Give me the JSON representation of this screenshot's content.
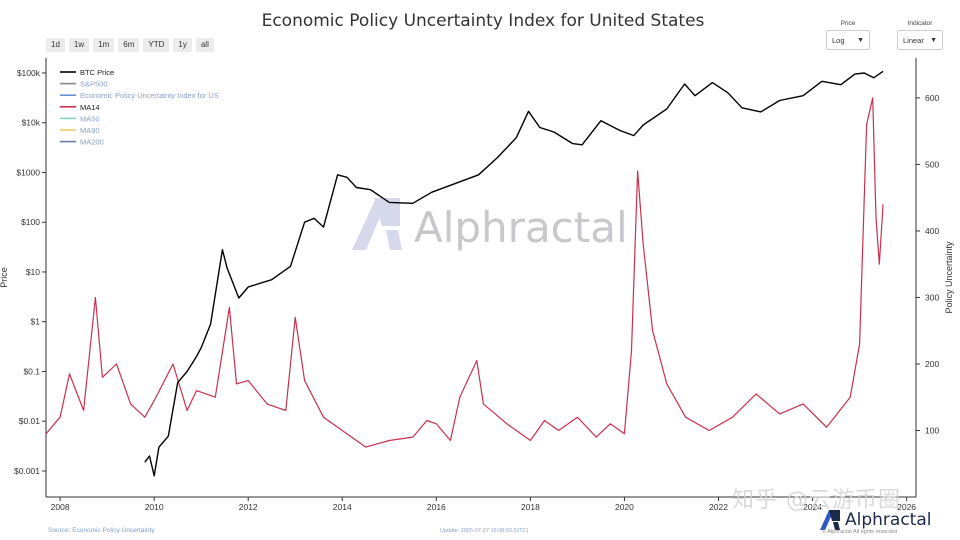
{
  "title": "Economic Policy Uncertainty Index for United States",
  "range_buttons": [
    "1d",
    "1w",
    "1m",
    "6m",
    "YTD",
    "1y",
    "all"
  ],
  "price_select": {
    "label": "Price",
    "value": "Log"
  },
  "indicator_select": {
    "label": "Indicator",
    "value": "Linear"
  },
  "watermark": {
    "brand": "Alphractal",
    "zhihu": "知乎 @云游币圈"
  },
  "footer": {
    "source": "Source: Economic Policy Uncertainty",
    "update": "Update: 2025-07-07 15:08:03 (UTC)",
    "brand": "Alphractal",
    "rights": "© Alphractal All rights reserved"
  },
  "colors": {
    "btc": "#000000",
    "ma14": "#c8314e",
    "sp500": "#888888",
    "epu": "#6c8fd8",
    "ma50": "#7fd3c4",
    "ma90": "#f2c96b",
    "ma200": "#6a7fa8"
  },
  "chart_data": {
    "type": "line",
    "title": "Economic Policy Uncertainty Index for United States",
    "x_axis": {
      "ticks": [
        "2008",
        "2010",
        "2012",
        "2014",
        "2016",
        "2018",
        "2020",
        "2022",
        "2024",
        "2026"
      ],
      "range": [
        2007.7,
        2026.2
      ]
    },
    "y_left": {
      "label": "Price",
      "scale": "log",
      "ticks": [
        "$0.001",
        "$0.01",
        "$0.1",
        "$1",
        "$10",
        "$100",
        "$1000",
        "$10k",
        "$100k"
      ],
      "range": [
        0.0003,
        200000
      ]
    },
    "y_right": {
      "label": "Policy Uncertainty",
      "scale": "linear",
      "ticks": [
        "100",
        "200",
        "300",
        "400",
        "500",
        "600"
      ],
      "range": [
        0,
        660
      ]
    },
    "legend_position": "top-left",
    "grid": false,
    "legend": [
      "BTC Price",
      "S&P500",
      "Economic Policy Uncertainty Index for US",
      "MA14",
      "MA50",
      "MA90",
      "MA200"
    ],
    "series": [
      {
        "name": "BTC Price",
        "axis": "left",
        "points": [
          [
            2009.8,
            0.0015
          ],
          [
            2009.9,
            0.002
          ],
          [
            2010.0,
            0.0008
          ],
          [
            2010.1,
            0.003
          ],
          [
            2010.3,
            0.005
          ],
          [
            2010.5,
            0.06
          ],
          [
            2010.7,
            0.1
          ],
          [
            2010.9,
            0.2
          ],
          [
            2011.0,
            0.3
          ],
          [
            2011.2,
            0.9
          ],
          [
            2011.45,
            28
          ],
          [
            2011.55,
            12
          ],
          [
            2011.8,
            3
          ],
          [
            2012.0,
            5
          ],
          [
            2012.5,
            7
          ],
          [
            2012.9,
            13
          ],
          [
            2013.2,
            100
          ],
          [
            2013.4,
            120
          ],
          [
            2013.6,
            80
          ],
          [
            2013.9,
            900
          ],
          [
            2014.1,
            800
          ],
          [
            2014.3,
            500
          ],
          [
            2014.6,
            450
          ],
          [
            2015.0,
            250
          ],
          [
            2015.5,
            240
          ],
          [
            2015.9,
            400
          ],
          [
            2016.5,
            650
          ],
          [
            2016.9,
            900
          ],
          [
            2017.3,
            2000
          ],
          [
            2017.7,
            5000
          ],
          [
            2017.96,
            17000
          ],
          [
            2018.2,
            8000
          ],
          [
            2018.5,
            6500
          ],
          [
            2018.9,
            3800
          ],
          [
            2019.1,
            3600
          ],
          [
            2019.5,
            11000
          ],
          [
            2019.9,
            7000
          ],
          [
            2020.2,
            5500
          ],
          [
            2020.4,
            9000
          ],
          [
            2020.9,
            19000
          ],
          [
            2021.28,
            60000
          ],
          [
            2021.5,
            35000
          ],
          [
            2021.87,
            64000
          ],
          [
            2022.2,
            40000
          ],
          [
            2022.5,
            20000
          ],
          [
            2022.9,
            16500
          ],
          [
            2023.3,
            28000
          ],
          [
            2023.8,
            35000
          ],
          [
            2024.2,
            68000
          ],
          [
            2024.6,
            58000
          ],
          [
            2024.9,
            95000
          ],
          [
            2025.1,
            100000
          ],
          [
            2025.3,
            80000
          ],
          [
            2025.5,
            108000
          ]
        ]
      },
      {
        "name": "MA14",
        "axis": "right",
        "points": [
          [
            2007.7,
            95
          ],
          [
            2008.0,
            120
          ],
          [
            2008.2,
            185
          ],
          [
            2008.5,
            130
          ],
          [
            2008.75,
            300
          ],
          [
            2008.9,
            180
          ],
          [
            2009.2,
            200
          ],
          [
            2009.5,
            140
          ],
          [
            2009.8,
            120
          ],
          [
            2010.0,
            145
          ],
          [
            2010.4,
            200
          ],
          [
            2010.7,
            130
          ],
          [
            2010.9,
            160
          ],
          [
            2011.3,
            150
          ],
          [
            2011.6,
            285
          ],
          [
            2011.75,
            170
          ],
          [
            2012.0,
            175
          ],
          [
            2012.4,
            140
          ],
          [
            2012.8,
            130
          ],
          [
            2013.0,
            270
          ],
          [
            2013.2,
            175
          ],
          [
            2013.6,
            120
          ],
          [
            2014.0,
            100
          ],
          [
            2014.5,
            75
          ],
          [
            2015.0,
            85
          ],
          [
            2015.5,
            90
          ],
          [
            2015.8,
            115
          ],
          [
            2016.0,
            110
          ],
          [
            2016.3,
            85
          ],
          [
            2016.5,
            150
          ],
          [
            2016.86,
            205
          ],
          [
            2017.0,
            140
          ],
          [
            2017.5,
            110
          ],
          [
            2018.0,
            85
          ],
          [
            2018.3,
            115
          ],
          [
            2018.6,
            100
          ],
          [
            2019.0,
            120
          ],
          [
            2019.4,
            90
          ],
          [
            2019.7,
            110
          ],
          [
            2020.0,
            95
          ],
          [
            2020.15,
            220
          ],
          [
            2020.28,
            490
          ],
          [
            2020.4,
            380
          ],
          [
            2020.6,
            250
          ],
          [
            2020.9,
            170
          ],
          [
            2021.3,
            120
          ],
          [
            2021.8,
            100
          ],
          [
            2022.3,
            120
          ],
          [
            2022.8,
            155
          ],
          [
            2023.3,
            125
          ],
          [
            2023.8,
            140
          ],
          [
            2024.3,
            105
          ],
          [
            2024.8,
            150
          ],
          [
            2025.0,
            230
          ],
          [
            2025.15,
            560
          ],
          [
            2025.28,
            600
          ],
          [
            2025.35,
            420
          ],
          [
            2025.42,
            350
          ],
          [
            2025.5,
            440
          ]
        ]
      }
    ]
  }
}
